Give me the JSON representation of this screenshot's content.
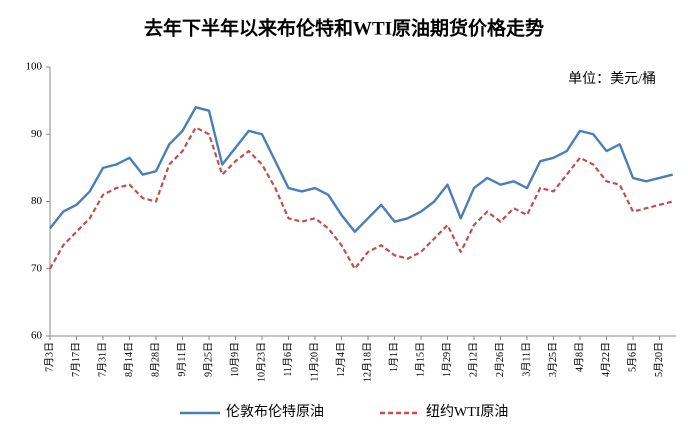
{
  "chart_data": {
    "type": "line",
    "title": "去年下半年以来布伦特和WTI原油期货价格走势",
    "annotation": "单位：美元/桶",
    "categories": [
      "7月3日",
      null,
      "7月17日",
      null,
      "7月31日",
      null,
      "8月14日",
      null,
      "8月28日",
      null,
      "9月11日",
      null,
      "9月25日",
      null,
      "10月9日",
      null,
      "10月23日",
      null,
      "11月6日",
      null,
      "11月20日",
      null,
      "12月4日",
      null,
      "12月18日",
      null,
      "1月1日",
      null,
      "1月15日",
      null,
      "1月29日",
      null,
      "2月12日",
      null,
      "2月26日",
      null,
      "3月11日",
      null,
      "3月25日",
      null,
      "4月8日",
      null,
      "4月22日",
      null,
      "5月6日",
      null,
      "5月20日",
      null
    ],
    "series": [
      {
        "name": "伦敦布伦特原油",
        "color": "#4a7ebb",
        "dash": false,
        "values": [
          76,
          78.5,
          79.5,
          81.5,
          85,
          85.5,
          86.5,
          84,
          84.5,
          88.5,
          90.5,
          94,
          93.5,
          85.5,
          88,
          90.5,
          90,
          86,
          82,
          81.5,
          82,
          81,
          78,
          75.5,
          77.5,
          79.5,
          77,
          77.5,
          78.5,
          80,
          82.5,
          77.5,
          82,
          83.5,
          82.5,
          83,
          82,
          86,
          86.5,
          87.5,
          90.5,
          90,
          87.5,
          88.5,
          83.5,
          83,
          83.5,
          84
        ]
      },
      {
        "name": "纽约WTI原油",
        "color": "#c0504d",
        "dash": true,
        "values": [
          70,
          73.5,
          75.5,
          77.5,
          81,
          82,
          82.5,
          80.5,
          80,
          85.5,
          87.5,
          91,
          90,
          84,
          86,
          87.5,
          85.5,
          82,
          77.5,
          77,
          77.5,
          76,
          73.5,
          70,
          72.5,
          73.5,
          72,
          71.5,
          72.5,
          74.5,
          76.5,
          72.5,
          76.5,
          78.5,
          77,
          79,
          78,
          82,
          81.5,
          84,
          86.5,
          85.5,
          83,
          82.5,
          78.5,
          79,
          79.5,
          80
        ]
      }
    ],
    "ylim": [
      60,
      100
    ],
    "yticks": [
      60,
      70,
      80,
      90,
      100
    ],
    "grid": false
  }
}
